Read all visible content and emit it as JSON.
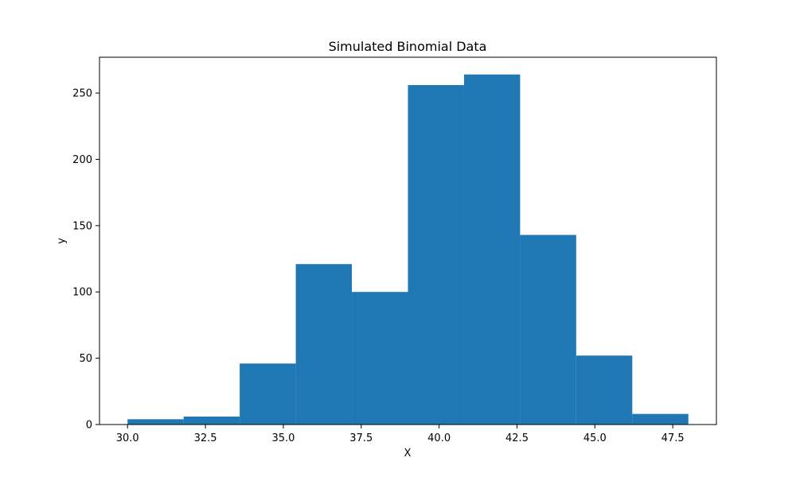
{
  "chart_data": {
    "type": "bar",
    "title": "Simulated Binomial Data",
    "xlabel": "X",
    "ylabel": "y",
    "xlim": [
      29.1,
      48.9
    ],
    "ylim": [
      0,
      277
    ],
    "bin_edges": [
      30.0,
      31.8,
      33.6,
      35.4,
      37.2,
      39.0,
      40.8,
      42.6,
      44.4,
      46.2,
      48.0
    ],
    "values": [
      4,
      6,
      46,
      121,
      100,
      256,
      264,
      143,
      52,
      8
    ],
    "x_ticks": [
      30.0,
      32.5,
      35.0,
      37.5,
      40.0,
      42.5,
      45.0,
      47.5
    ],
    "x_tick_labels": [
      "30.0",
      "32.5",
      "35.0",
      "37.5",
      "40.0",
      "42.5",
      "45.0",
      "47.5"
    ],
    "y_ticks": [
      0,
      50,
      100,
      150,
      200,
      250
    ],
    "y_tick_labels": [
      "0",
      "50",
      "100",
      "150",
      "200",
      "250"
    ],
    "bar_color": "#1f77b4",
    "grid": false
  }
}
